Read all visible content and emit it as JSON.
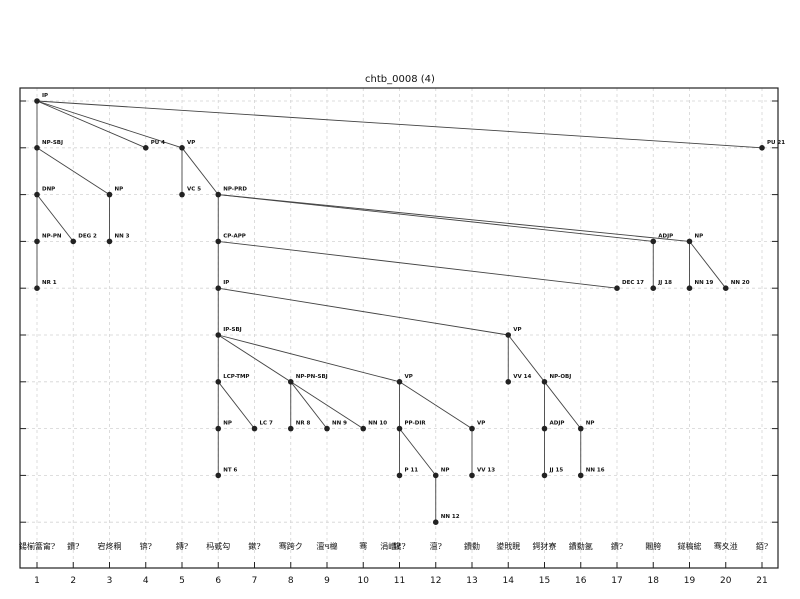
{
  "title": "chtb_0008 (4)",
  "chart_data": {
    "type": "tree",
    "x_ticks": [
      "1",
      "2",
      "3",
      "4",
      "5",
      "6",
      "7",
      "8",
      "9",
      "10",
      "11",
      "12",
      "13",
      "14",
      "15",
      "16",
      "17",
      "18",
      "19",
      "20",
      "21"
    ],
    "depth_levels": 10,
    "grid": true,
    "nodes": [
      {
        "id": "IP_root",
        "label": "IP",
        "x": 1,
        "level": 0
      },
      {
        "id": "NPSBJ",
        "label": "NP-SBJ",
        "x": 1,
        "level": 1
      },
      {
        "id": "PU4",
        "label": "PU 4",
        "x": 4,
        "level": 1
      },
      {
        "id": "VP_top",
        "label": "VP",
        "x": 5,
        "level": 1
      },
      {
        "id": "PU21",
        "label": "PU 21",
        "x": 21,
        "level": 1
      },
      {
        "id": "DNP",
        "label": "DNP",
        "x": 1,
        "level": 2
      },
      {
        "id": "NP3",
        "label": "NP",
        "x": 3,
        "level": 2
      },
      {
        "id": "VC5",
        "label": "VC 5",
        "x": 5,
        "level": 2
      },
      {
        "id": "NPPRD",
        "label": "NP-PRD",
        "x": 6,
        "level": 2
      },
      {
        "id": "NPPN",
        "label": "NP-PN",
        "x": 1,
        "level": 3
      },
      {
        "id": "DEG2",
        "label": "DEG 2",
        "x": 2,
        "level": 3
      },
      {
        "id": "NN3",
        "label": "NN 3",
        "x": 3,
        "level": 3
      },
      {
        "id": "CPAPP",
        "label": "CP-APP",
        "x": 6,
        "level": 3
      },
      {
        "id": "ADJP18",
        "label": "ADJP",
        "x": 18,
        "level": 3
      },
      {
        "id": "NP19",
        "label": "NP",
        "x": 19,
        "level": 3
      },
      {
        "id": "NR1",
        "label": "NR 1",
        "x": 1,
        "level": 4
      },
      {
        "id": "IP6",
        "label": "IP",
        "x": 6,
        "level": 4
      },
      {
        "id": "DEC17",
        "label": "DEC 17",
        "x": 17,
        "level": 4
      },
      {
        "id": "JJ18",
        "label": "JJ 18",
        "x": 18,
        "level": 4
      },
      {
        "id": "NN19",
        "label": "NN 19",
        "x": 19,
        "level": 4
      },
      {
        "id": "NN20",
        "label": "NN 20",
        "x": 20,
        "level": 4
      },
      {
        "id": "IPSBJ",
        "label": "IP-SBJ",
        "x": 6,
        "level": 5
      },
      {
        "id": "VP14",
        "label": "VP",
        "x": 14,
        "level": 5
      },
      {
        "id": "LCPTMP",
        "label": "LCP-TMP",
        "x": 6,
        "level": 6
      },
      {
        "id": "NPPNSBJ",
        "label": "NP-PN-SBJ",
        "x": 8,
        "level": 6
      },
      {
        "id": "VP11",
        "label": "VP",
        "x": 11,
        "level": 6
      },
      {
        "id": "VV14",
        "label": "VV 14",
        "x": 14,
        "level": 6
      },
      {
        "id": "NPOBJ",
        "label": "NP-OBJ",
        "x": 15,
        "level": 6
      },
      {
        "id": "NP6",
        "label": "NP",
        "x": 6,
        "level": 7
      },
      {
        "id": "LC7",
        "label": "LC 7",
        "x": 7,
        "level": 7
      },
      {
        "id": "NR8",
        "label": "NR 8",
        "x": 8,
        "level": 7
      },
      {
        "id": "NN9",
        "label": "NN 9",
        "x": 9,
        "level": 7
      },
      {
        "id": "NN10",
        "label": "NN 10",
        "x": 10,
        "level": 7
      },
      {
        "id": "PPDIR",
        "label": "PP-DIR",
        "x": 11,
        "level": 7
      },
      {
        "id": "VP13",
        "label": "VP",
        "x": 13,
        "level": 7
      },
      {
        "id": "ADJP15",
        "label": "ADJP",
        "x": 15,
        "level": 7
      },
      {
        "id": "NP16",
        "label": "NP",
        "x": 16,
        "level": 7
      },
      {
        "id": "NT6",
        "label": "NT 6",
        "x": 6,
        "level": 8
      },
      {
        "id": "P11",
        "label": "P 11",
        "x": 11,
        "level": 8
      },
      {
        "id": "NP12",
        "label": "NP",
        "x": 12,
        "level": 8
      },
      {
        "id": "VV13",
        "label": "VV 13",
        "x": 13,
        "level": 8
      },
      {
        "id": "JJ15",
        "label": "JJ 15",
        "x": 15,
        "level": 8
      },
      {
        "id": "NN16",
        "label": "NN 16",
        "x": 16,
        "level": 8
      },
      {
        "id": "NN12",
        "label": "NN 12",
        "x": 12,
        "level": 9
      }
    ],
    "edges": [
      [
        "IP_root",
        "NPSBJ"
      ],
      [
        "IP_root",
        "PU4"
      ],
      [
        "IP_root",
        "VP_top"
      ],
      [
        "IP_root",
        "PU21"
      ],
      [
        "NPSBJ",
        "DNP"
      ],
      [
        "NPSBJ",
        "NP3"
      ],
      [
        "DNP",
        "NPPN"
      ],
      [
        "DNP",
        "DEG2"
      ],
      [
        "NPPN",
        "NR1"
      ],
      [
        "NP3",
        "NN3"
      ],
      [
        "VP_top",
        "VC5"
      ],
      [
        "VP_top",
        "NPPRD"
      ],
      [
        "NPPRD",
        "CPAPP"
      ],
      [
        "NPPRD",
        "ADJP18"
      ],
      [
        "NPPRD",
        "NP19"
      ],
      [
        "ADJP18",
        "JJ18"
      ],
      [
        "NP19",
        "NN19"
      ],
      [
        "NP19",
        "NN20"
      ],
      [
        "CPAPP",
        "IP6"
      ],
      [
        "CPAPP",
        "DEC17"
      ],
      [
        "IP6",
        "IPSBJ"
      ],
      [
        "IP6",
        "VP14"
      ],
      [
        "IPSBJ",
        "LCPTMP"
      ],
      [
        "IPSBJ",
        "NPPNSBJ"
      ],
      [
        "IPSBJ",
        "VP11"
      ],
      [
        "LCPTMP",
        "NP6"
      ],
      [
        "LCPTMP",
        "LC7"
      ],
      [
        "NP6",
        "NT6"
      ],
      [
        "NPPNSBJ",
        "NR8"
      ],
      [
        "NPPNSBJ",
        "NN9"
      ],
      [
        "NPPNSBJ",
        "NN10"
      ],
      [
        "VP11",
        "PPDIR"
      ],
      [
        "VP11",
        "VP13"
      ],
      [
        "PPDIR",
        "P11"
      ],
      [
        "PPDIR",
        "NP12"
      ],
      [
        "NP12",
        "NN12"
      ],
      [
        "VP13",
        "VV13"
      ],
      [
        "VP14",
        "VV14"
      ],
      [
        "VP14",
        "NPOBJ"
      ],
      [
        "NPOBJ",
        "ADJP15"
      ],
      [
        "NPOBJ",
        "NP16"
      ],
      [
        "ADJP15",
        "JJ15"
      ],
      [
        "NP16",
        "NN16"
      ]
    ],
    "words": [
      {
        "x": 1,
        "text": "鍚椾簹甯?"
      },
      {
        "x": 2,
        "text": "鐨?"
      },
      {
        "x": 3,
        "text": "宕炵粡"
      },
      {
        "x": 4,
        "text": "锛?"
      },
      {
        "x": 5,
        "text": "鏄?"
      },
      {
        "x": 6,
        "text": "杩戜勾"
      },
      {
        "x": 7,
        "text": "鏉?"
      },
      {
        "x": 8,
        "text": "骞跨ク"
      },
      {
        "x": 9,
        "text": "澶ч檰"
      },
      {
        "x": 10,
        "text": "骞"
      },
      {
        "x": 10.75,
        "text": "涓嶆?"
      },
      {
        "x": 11,
        "text": "鑱?"
      },
      {
        "x": 12,
        "text": "澶?"
      },
      {
        "x": 13,
        "text": "鐨勬"
      },
      {
        "x": 14,
        "text": "鍙戝睍"
      },
      {
        "x": 15,
        "text": "鍔犲寮"
      },
      {
        "x": 16,
        "text": "鐨勬氬"
      },
      {
        "x": 17,
        "text": "鐨?"
      },
      {
        "x": 18,
        "text": "闀胯"
      },
      {
        "x": 19,
        "text": "鐩稿綋"
      },
      {
        "x": 20,
        "text": "骞夊湴"
      },
      {
        "x": 21,
        "text": "銆?"
      }
    ]
  }
}
